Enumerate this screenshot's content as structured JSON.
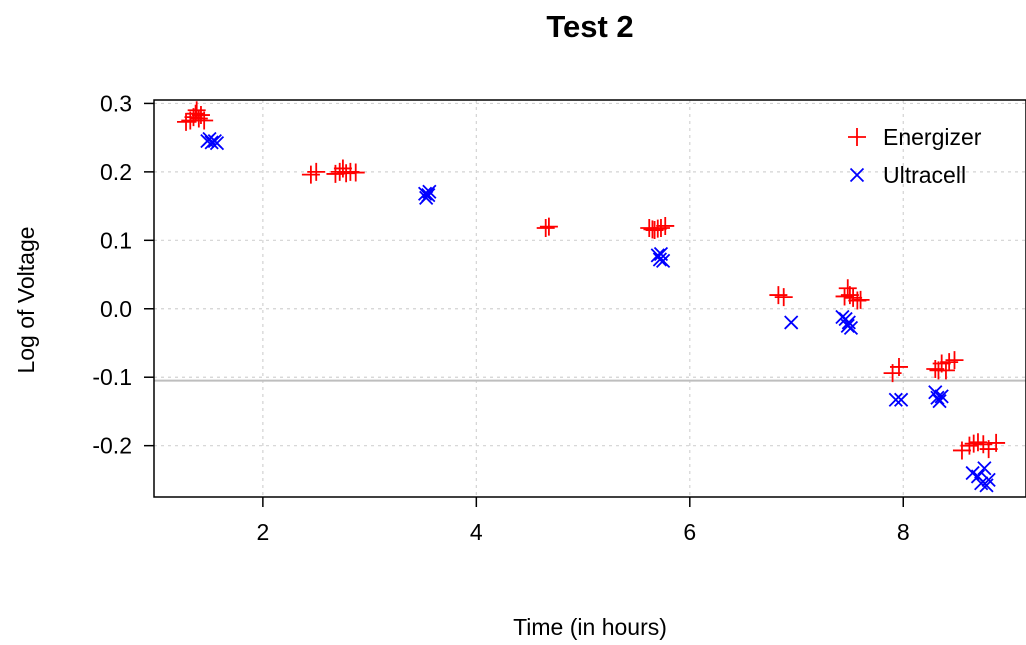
{
  "chart_data": {
    "type": "scatter",
    "title": "Test 2",
    "xlabel": "Time (in hours)",
    "ylabel": "Log of Voltage",
    "xlim": [
      0.98,
      9.15
    ],
    "ylim": [
      -0.275,
      0.305
    ],
    "xticks": [
      2,
      4,
      6,
      8
    ],
    "xtick_labels": [
      "2",
      "4",
      "6",
      "8"
    ],
    "yticks": [
      -0.2,
      -0.1,
      0.0,
      0.1,
      0.2,
      0.3
    ],
    "ytick_labels": [
      "-0.2",
      "-0.1",
      "0.0",
      "0.1",
      "0.2",
      "0.3"
    ],
    "grid": true,
    "reference_line_y": -0.105,
    "legend": {
      "position": "top-right"
    },
    "series": [
      {
        "name": "Energizer",
        "color": "#ff0000",
        "marker": "plus",
        "points": [
          [
            1.28,
            0.273
          ],
          [
            1.32,
            0.275
          ],
          [
            1.35,
            0.28
          ],
          [
            1.37,
            0.285
          ],
          [
            1.38,
            0.29
          ],
          [
            1.4,
            0.278
          ],
          [
            1.42,
            0.283
          ],
          [
            1.45,
            0.275
          ],
          [
            2.45,
            0.196
          ],
          [
            2.5,
            0.2
          ],
          [
            2.68,
            0.197
          ],
          [
            2.72,
            0.2
          ],
          [
            2.75,
            0.205
          ],
          [
            2.78,
            0.198
          ],
          [
            2.82,
            0.2
          ],
          [
            2.87,
            0.199
          ],
          [
            4.65,
            0.118
          ],
          [
            4.68,
            0.12
          ],
          [
            5.62,
            0.118
          ],
          [
            5.65,
            0.116
          ],
          [
            5.67,
            0.115
          ],
          [
            5.7,
            0.117
          ],
          [
            5.73,
            0.118
          ],
          [
            5.77,
            0.121
          ],
          [
            6.83,
            0.02
          ],
          [
            6.88,
            0.017
          ],
          [
            7.45,
            0.018
          ],
          [
            7.48,
            0.03
          ],
          [
            7.5,
            0.02
          ],
          [
            7.53,
            0.016
          ],
          [
            7.57,
            0.012
          ],
          [
            7.6,
            0.013
          ],
          [
            7.9,
            -0.094
          ],
          [
            7.96,
            -0.085
          ],
          [
            8.3,
            -0.088
          ],
          [
            8.33,
            -0.09
          ],
          [
            8.36,
            -0.08
          ],
          [
            8.4,
            -0.09
          ],
          [
            8.43,
            -0.078
          ],
          [
            8.48,
            -0.075
          ],
          [
            8.55,
            -0.207
          ],
          [
            8.62,
            -0.2
          ],
          [
            8.66,
            -0.197
          ],
          [
            8.7,
            -0.195
          ],
          [
            8.75,
            -0.198
          ],
          [
            8.8,
            -0.205
          ],
          [
            8.87,
            -0.196
          ]
        ]
      },
      {
        "name": "Ultracell",
        "color": "#0000ff",
        "marker": "x",
        "points": [
          [
            1.48,
            0.245
          ],
          [
            1.5,
            0.248
          ],
          [
            1.52,
            0.243
          ],
          [
            1.55,
            0.245
          ],
          [
            1.57,
            0.242
          ],
          [
            3.52,
            0.168
          ],
          [
            3.53,
            0.162
          ],
          [
            3.55,
            0.166
          ],
          [
            3.56,
            0.171
          ],
          [
            5.7,
            0.078
          ],
          [
            5.72,
            0.072
          ],
          [
            5.73,
            0.08
          ],
          [
            5.75,
            0.07
          ],
          [
            6.95,
            -0.02
          ],
          [
            7.43,
            -0.012
          ],
          [
            7.46,
            -0.015
          ],
          [
            7.48,
            -0.025
          ],
          [
            7.49,
            -0.02
          ],
          [
            7.51,
            -0.028
          ],
          [
            7.93,
            -0.133
          ],
          [
            7.98,
            -0.133
          ],
          [
            8.3,
            -0.122
          ],
          [
            8.32,
            -0.13
          ],
          [
            8.34,
            -0.135
          ],
          [
            8.36,
            -0.128
          ],
          [
            8.65,
            -0.24
          ],
          [
            8.7,
            -0.245
          ],
          [
            8.73,
            -0.255
          ],
          [
            8.76,
            -0.233
          ],
          [
            8.78,
            -0.258
          ],
          [
            8.8,
            -0.25
          ]
        ]
      }
    ]
  }
}
